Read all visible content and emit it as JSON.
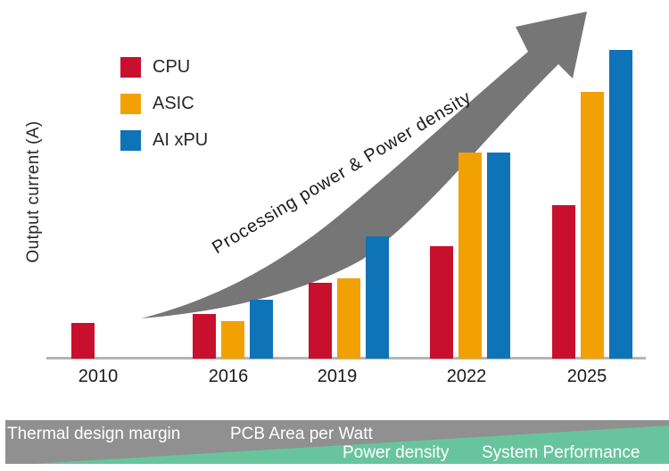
{
  "y_axis_label": "Output current (A)",
  "legend": {
    "items": [
      {
        "label": "CPU",
        "color": "#c8102e"
      },
      {
        "label": "ASIC",
        "color": "#f2a105"
      },
      {
        "label": "AI xPU",
        "color": "#0f73b8"
      }
    ]
  },
  "annotation": {
    "arrow_label": "Processing power & Power density",
    "arrow_color": "#767676"
  },
  "chart_data": {
    "type": "bar",
    "title": "",
    "xlabel": "",
    "ylabel": "Output current (A)",
    "categories": [
      "2010",
      "2016",
      "2019",
      "2022",
      "2025"
    ],
    "series": [
      {
        "name": "CPU",
        "color": "#c8102e",
        "values": [
          40,
          50,
          85,
          126,
          172
        ]
      },
      {
        "name": "ASIC",
        "color": "#f2a105",
        "values": [
          null,
          42,
          90,
          231,
          299
        ]
      },
      {
        "name": "AI xPU",
        "color": "#0f73b8",
        "values": [
          null,
          66,
          137,
          231,
          346
        ]
      }
    ],
    "value_units": "relative (y axis has no numeric scale in source)",
    "legend_position": "top-left",
    "grid": false,
    "annotation": "Processing power & Power density"
  },
  "banner": {
    "top_row": [
      {
        "label": "Thermal design margin"
      },
      {
        "label": "PCB Area per Watt"
      }
    ],
    "bottom_row": [
      {
        "label": "Power density"
      },
      {
        "label": "System Performance"
      }
    ],
    "gray_color": "#909090",
    "green_color": "#68c49f",
    "text_color": "#ffffff"
  },
  "colors": {
    "axis_line": "#b5b5b5",
    "text": "#1a1a1a"
  }
}
